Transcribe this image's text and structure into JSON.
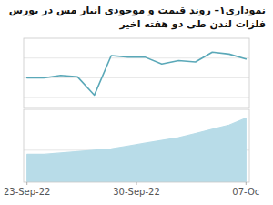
{
  "chart_data": [
    {
      "type": "line",
      "title": "نموداری۱– روند قیمت و موجودی انبار مس در بورس فلزات لندن طی دو هفته اخیر",
      "x": [
        0,
        1,
        2,
        3,
        4,
        5,
        6,
        7,
        8,
        9,
        10,
        11,
        12,
        13
      ],
      "values": [
        5.0,
        5.0,
        5.05,
        5.02,
        4.65,
        5.45,
        5.42,
        5.42,
        5.28,
        5.35,
        5.32,
        5.52,
        5.48,
        5.38
      ],
      "color": "#5aa8b8",
      "xlim": [
        -0.2,
        13.2
      ],
      "ylim": [
        4.4,
        5.8
      ],
      "yticks": [
        4.6,
        5.0,
        5.4
      ],
      "grid": true,
      "tick_labels": false
    },
    {
      "type": "area",
      "x": [
        0,
        1,
        2,
        3,
        4,
        5,
        6,
        7,
        8,
        9,
        10,
        11,
        12,
        13
      ],
      "values": [
        100,
        100,
        101,
        102,
        103,
        104,
        106,
        108,
        110,
        112,
        115,
        118,
        121,
        126
      ],
      "color": "#b8dce8",
      "xlim": [
        -0.2,
        13.2
      ],
      "ylim": [
        80,
        132.3
      ],
      "yticks": [
        103
      ],
      "xticks": [
        {
          "value": 0,
          "label": "23-Sep-22"
        },
        {
          "value": 6.5,
          "label": "30-Sep-22"
        },
        {
          "value": 13,
          "label": "07-Oc"
        }
      ],
      "grid": true,
      "tick_labels": "x"
    }
  ]
}
